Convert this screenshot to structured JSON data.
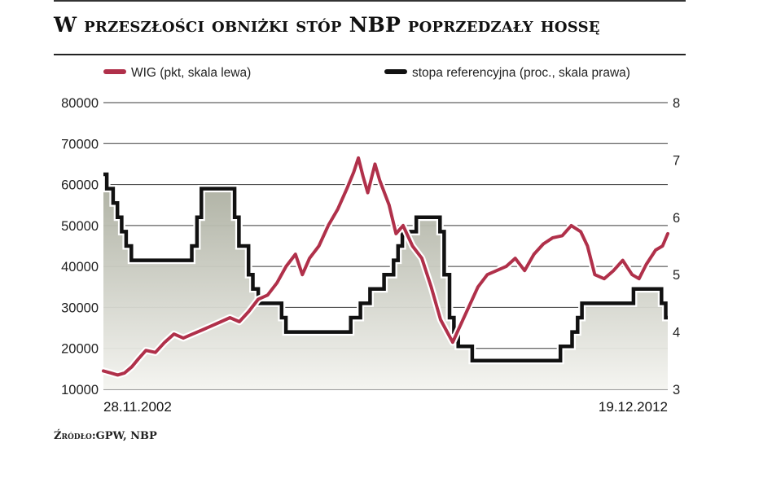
{
  "header": {
    "title": "W przeszłości obniżki stóp NBP poprzedzały hossę"
  },
  "footer": {
    "source": "Źródło:GPW, NBP"
  },
  "chart_data": {
    "type": "line",
    "x_start_label": "28.11.2002",
    "x_end_label": "19.12.2012",
    "x_range": [
      "2002-11-28",
      "2012-12-19"
    ],
    "y_left": {
      "min": 10000,
      "max": 80000,
      "ticks": [
        "80000",
        "70000",
        "60000",
        "50000",
        "40000",
        "30000",
        "20000",
        "10000"
      ]
    },
    "y_right": {
      "min": 3,
      "max": 8,
      "ticks": [
        "8",
        "7",
        "6",
        "5",
        "4",
        "3"
      ]
    },
    "grid": true,
    "legend_placement": "top",
    "series": [
      {
        "name": "WIG (pkt, skala lewa)",
        "axis": "left",
        "color": "#b0304a",
        "points": [
          [
            "2002-11-28",
            14500
          ],
          [
            "2003-01-15",
            14000
          ],
          [
            "2003-03-01",
            13500
          ],
          [
            "2003-04-15",
            14000
          ],
          [
            "2003-06-01",
            15500
          ],
          [
            "2003-07-15",
            17500
          ],
          [
            "2003-09-01",
            19500
          ],
          [
            "2003-11-01",
            19000
          ],
          [
            "2004-01-01",
            21500
          ],
          [
            "2004-03-01",
            23500
          ],
          [
            "2004-05-01",
            22500
          ],
          [
            "2004-07-01",
            23500
          ],
          [
            "2004-09-01",
            24500
          ],
          [
            "2004-11-01",
            25500
          ],
          [
            "2005-01-01",
            26500
          ],
          [
            "2005-03-01",
            27500
          ],
          [
            "2005-05-01",
            26500
          ],
          [
            "2005-07-01",
            29000
          ],
          [
            "2005-09-01",
            32000
          ],
          [
            "2005-11-01",
            33000
          ],
          [
            "2006-01-01",
            36000
          ],
          [
            "2006-03-01",
            40000
          ],
          [
            "2006-05-01",
            43000
          ],
          [
            "2006-06-15",
            38000
          ],
          [
            "2006-08-01",
            42000
          ],
          [
            "2006-10-01",
            45000
          ],
          [
            "2006-12-01",
            50000
          ],
          [
            "2007-02-01",
            54000
          ],
          [
            "2007-04-01",
            59000
          ],
          [
            "2007-05-15",
            63000
          ],
          [
            "2007-06-15",
            66500
          ],
          [
            "2007-07-15",
            62000
          ],
          [
            "2007-08-15",
            58000
          ],
          [
            "2007-10-01",
            65000
          ],
          [
            "2007-11-01",
            61000
          ],
          [
            "2008-01-01",
            55000
          ],
          [
            "2008-02-15",
            48000
          ],
          [
            "2008-04-01",
            50000
          ],
          [
            "2008-06-01",
            45000
          ],
          [
            "2008-08-01",
            42000
          ],
          [
            "2008-10-01",
            35000
          ],
          [
            "2008-12-01",
            27000
          ],
          [
            "2009-02-18",
            21500
          ],
          [
            "2009-04-01",
            25000
          ],
          [
            "2009-06-01",
            30000
          ],
          [
            "2009-08-01",
            35000
          ],
          [
            "2009-10-01",
            38000
          ],
          [
            "2009-12-01",
            39000
          ],
          [
            "2010-02-01",
            40000
          ],
          [
            "2010-04-01",
            42000
          ],
          [
            "2010-06-01",
            39000
          ],
          [
            "2010-08-01",
            43000
          ],
          [
            "2010-10-01",
            45500
          ],
          [
            "2010-12-01",
            47000
          ],
          [
            "2011-02-01",
            47500
          ],
          [
            "2011-04-01",
            50000
          ],
          [
            "2011-06-01",
            48500
          ],
          [
            "2011-07-15",
            45000
          ],
          [
            "2011-09-01",
            38000
          ],
          [
            "2011-11-01",
            37000
          ],
          [
            "2012-01-01",
            39000
          ],
          [
            "2012-03-01",
            41500
          ],
          [
            "2012-05-01",
            38000
          ],
          [
            "2012-06-15",
            37000
          ],
          [
            "2012-08-01",
            40500
          ],
          [
            "2012-10-01",
            44000
          ],
          [
            "2012-11-15",
            45000
          ],
          [
            "2012-12-19",
            48000
          ]
        ]
      },
      {
        "name": "stopa referencyjna (proc., skala prawa)",
        "axis": "right",
        "color": "#111111",
        "points": [
          [
            "2002-11-28",
            6.75
          ],
          [
            "2002-12-20",
            6.5
          ],
          [
            "2003-01-30",
            6.25
          ],
          [
            "2003-02-27",
            6.0
          ],
          [
            "2003-03-27",
            5.75
          ],
          [
            "2003-04-25",
            5.5
          ],
          [
            "2003-05-29",
            5.25
          ],
          [
            "2003-06-26",
            5.25
          ],
          [
            "2004-06-25",
            5.5
          ],
          [
            "2004-07-29",
            6.0
          ],
          [
            "2004-08-27",
            6.5
          ],
          [
            "2005-03-31",
            6.0
          ],
          [
            "2005-04-28",
            5.5
          ],
          [
            "2005-06-30",
            5.0
          ],
          [
            "2005-07-28",
            4.75
          ],
          [
            "2005-09-01",
            4.5
          ],
          [
            "2006-01-31",
            4.25
          ],
          [
            "2006-02-28",
            4.0
          ],
          [
            "2007-04-26",
            4.25
          ],
          [
            "2007-06-28",
            4.5
          ],
          [
            "2007-08-30",
            4.75
          ],
          [
            "2007-11-29",
            5.0
          ],
          [
            "2008-01-30",
            5.25
          ],
          [
            "2008-02-28",
            5.5
          ],
          [
            "2008-03-27",
            5.75
          ],
          [
            "2008-06-26",
            6.0
          ],
          [
            "2008-11-27",
            5.75
          ],
          [
            "2008-12-24",
            5.0
          ],
          [
            "2009-01-28",
            4.25
          ],
          [
            "2009-02-26",
            4.0
          ],
          [
            "2009-03-26",
            3.75
          ],
          [
            "2009-06-25",
            3.5
          ],
          [
            "2011-01-20",
            3.75
          ],
          [
            "2011-04-06",
            4.0
          ],
          [
            "2011-05-12",
            4.25
          ],
          [
            "2011-06-09",
            4.5
          ],
          [
            "2012-05-10",
            4.75
          ],
          [
            "2012-11-08",
            4.5
          ],
          [
            "2012-12-06",
            4.25
          ],
          [
            "2012-12-19",
            4.25
          ]
        ]
      }
    ]
  }
}
